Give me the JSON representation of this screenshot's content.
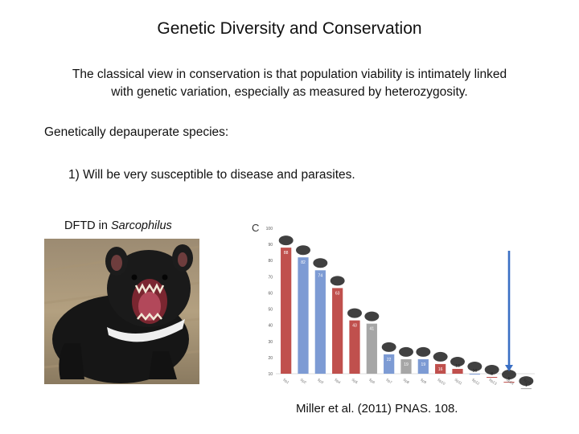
{
  "slide": {
    "title": "Genetic Diversity and Conservation",
    "intro": "The classical view in conservation is that population viability is intimately linked with genetic variation, especially as measured by heterozygosity.",
    "heading": "Genetically depauperate species:",
    "point1": "1) Will be very susceptible to disease and parasites.",
    "dftd_prefix": "DFTD in ",
    "dftd_genus": "Sarcophilus",
    "citation": "Miller et al. (2011) PNAS. 108."
  },
  "photo": {
    "subject": "tasmanian-devil"
  },
  "chart_data": {
    "type": "bar",
    "panel_label": "C",
    "categories": [
      "Sp1",
      "Sp2",
      "Sp3",
      "Sp4",
      "Sp5",
      "Sp6",
      "Sp7",
      "Sp8",
      "Sp9",
      "Sp10",
      "Sp11",
      "Sp12",
      "Sp13",
      "Sp14",
      "Sp15"
    ],
    "values": [
      88,
      82,
      74,
      63,
      43,
      41,
      22,
      19,
      19,
      16,
      13,
      10,
      8,
      5,
      1
    ],
    "value_labels": [
      "88",
      "82",
      "74",
      "63",
      "43",
      "41",
      "22",
      "19",
      "19",
      "16",
      "13",
      "10",
      "8",
      "5",
      "1"
    ],
    "colors": [
      "red",
      "blue",
      "blue",
      "red",
      "red",
      "grey",
      "blue",
      "grey",
      "blue",
      "red",
      "red",
      "blue",
      "red",
      "red",
      "grey"
    ],
    "ylim": [
      10,
      100
    ],
    "yticks": [
      "100",
      "90",
      "80",
      "70",
      "60",
      "50",
      "40",
      "30",
      "20",
      "10"
    ],
    "highlight_index": 13,
    "palette": {
      "red": "#c0504d",
      "blue": "#7d9bd4",
      "grey": "#a6a6a6",
      "arrow": "#3a6fc4"
    }
  }
}
